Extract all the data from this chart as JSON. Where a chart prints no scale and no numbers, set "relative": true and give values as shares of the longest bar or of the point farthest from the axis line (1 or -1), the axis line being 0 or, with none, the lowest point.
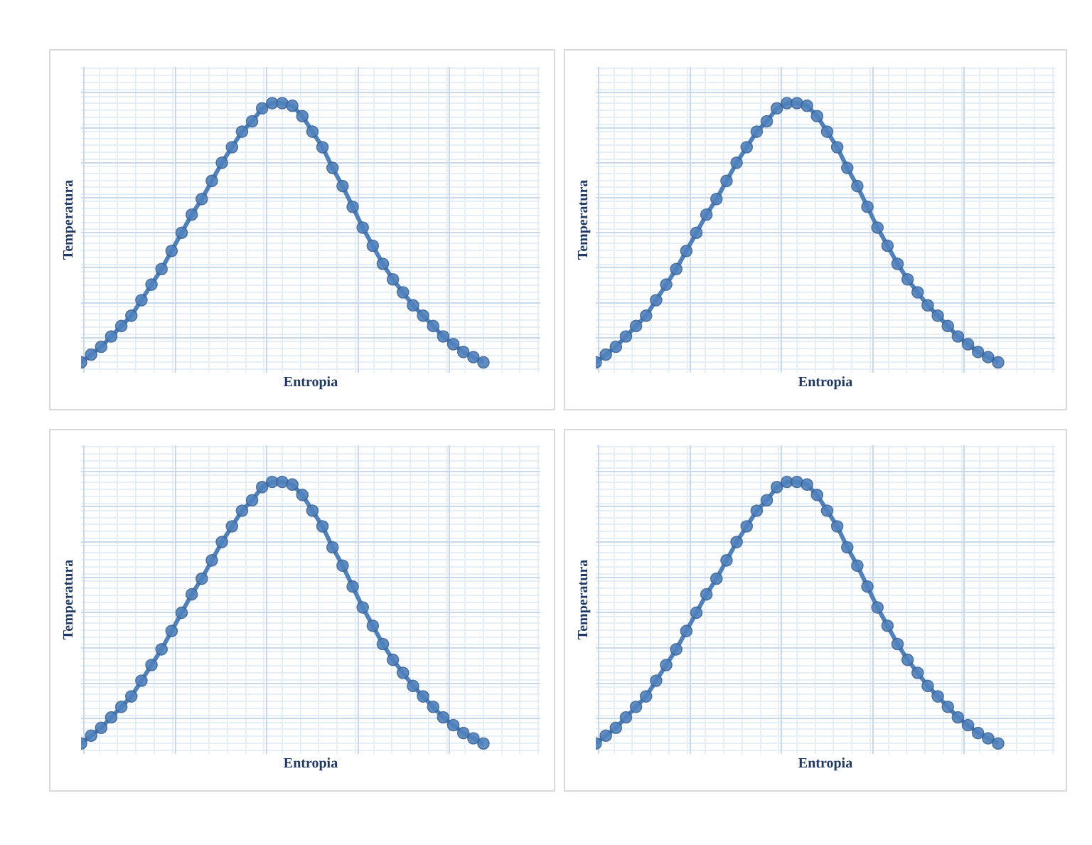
{
  "chart_data": [
    {
      "type": "line",
      "relative": true,
      "xlabel": "Entropia",
      "ylabel": "Temperatura",
      "grid": true,
      "marker": "circle",
      "tick_labels": false,
      "categories": [
        null,
        null,
        null,
        null,
        null,
        null,
        null,
        null,
        null,
        null,
        null,
        null,
        null,
        null,
        null,
        null,
        null,
        null,
        null,
        null,
        null,
        null,
        null,
        null,
        null,
        null,
        null,
        null,
        null,
        null,
        null,
        null,
        null,
        null,
        null,
        null,
        null,
        null,
        null,
        null,
        null
      ],
      "series": [
        {
          "color": "#4f81bd",
          "values": [
            0,
            0.03,
            0.06,
            0.1,
            0.14,
            0.18,
            0.24,
            0.3,
            0.36,
            0.43,
            0.5,
            0.57,
            0.63,
            0.7,
            0.77,
            0.83,
            0.89,
            0.93,
            0.98,
            1.0,
            1.0,
            0.99,
            0.95,
            0.89,
            0.83,
            0.75,
            0.68,
            0.6,
            0.52,
            0.45,
            0.38,
            0.32,
            0.27,
            0.22,
            0.18,
            0.14,
            0.1,
            0.07,
            0.04,
            0.02,
            0
          ]
        }
      ]
    },
    {
      "type": "line",
      "relative": true,
      "xlabel": "Entropia",
      "ylabel": "Temperatura",
      "grid": true,
      "marker": "circle",
      "tick_labels": false,
      "categories": [
        null,
        null,
        null,
        null,
        null,
        null,
        null,
        null,
        null,
        null,
        null,
        null,
        null,
        null,
        null,
        null,
        null,
        null,
        null,
        null,
        null,
        null,
        null,
        null,
        null,
        null,
        null,
        null,
        null,
        null,
        null,
        null,
        null,
        null,
        null,
        null,
        null,
        null,
        null,
        null,
        null
      ],
      "series": [
        {
          "color": "#4f81bd",
          "values": [
            0,
            0.03,
            0.06,
            0.1,
            0.14,
            0.18,
            0.24,
            0.3,
            0.36,
            0.43,
            0.5,
            0.57,
            0.63,
            0.7,
            0.77,
            0.83,
            0.89,
            0.93,
            0.98,
            1.0,
            1.0,
            0.99,
            0.95,
            0.89,
            0.83,
            0.75,
            0.68,
            0.6,
            0.52,
            0.45,
            0.38,
            0.32,
            0.27,
            0.22,
            0.18,
            0.14,
            0.1,
            0.07,
            0.04,
            0.02,
            0
          ]
        }
      ]
    },
    {
      "type": "line",
      "relative": true,
      "xlabel": "Entropia",
      "ylabel": "Temperatura",
      "grid": true,
      "marker": "circle",
      "tick_labels": false,
      "categories": [
        null,
        null,
        null,
        null,
        null,
        null,
        null,
        null,
        null,
        null,
        null,
        null,
        null,
        null,
        null,
        null,
        null,
        null,
        null,
        null,
        null,
        null,
        null,
        null,
        null,
        null,
        null,
        null,
        null,
        null,
        null,
        null,
        null,
        null,
        null,
        null,
        null,
        null,
        null,
        null,
        null
      ],
      "series": [
        {
          "color": "#4f81bd",
          "values": [
            0,
            0.03,
            0.06,
            0.1,
            0.14,
            0.18,
            0.24,
            0.3,
            0.36,
            0.43,
            0.5,
            0.57,
            0.63,
            0.7,
            0.77,
            0.83,
            0.89,
            0.93,
            0.98,
            1.0,
            1.0,
            0.99,
            0.95,
            0.89,
            0.83,
            0.75,
            0.68,
            0.6,
            0.52,
            0.45,
            0.38,
            0.32,
            0.27,
            0.22,
            0.18,
            0.14,
            0.1,
            0.07,
            0.04,
            0.02,
            0
          ]
        }
      ]
    },
    {
      "type": "line",
      "relative": true,
      "xlabel": "Entropia",
      "ylabel": "Temperatura",
      "grid": true,
      "marker": "circle",
      "tick_labels": false,
      "categories": [
        null,
        null,
        null,
        null,
        null,
        null,
        null,
        null,
        null,
        null,
        null,
        null,
        null,
        null,
        null,
        null,
        null,
        null,
        null,
        null,
        null,
        null,
        null,
        null,
        null,
        null,
        null,
        null,
        null,
        null,
        null,
        null,
        null,
        null,
        null,
        null,
        null,
        null,
        null,
        null,
        null
      ],
      "series": [
        {
          "color": "#4f81bd",
          "values": [
            0,
            0.03,
            0.06,
            0.1,
            0.14,
            0.18,
            0.24,
            0.3,
            0.36,
            0.43,
            0.5,
            0.57,
            0.63,
            0.7,
            0.77,
            0.83,
            0.89,
            0.93,
            0.98,
            1.0,
            1.0,
            0.99,
            0.95,
            0.89,
            0.83,
            0.75,
            0.68,
            0.6,
            0.52,
            0.45,
            0.38,
            0.32,
            0.27,
            0.22,
            0.18,
            0.14,
            0.1,
            0.07,
            0.04,
            0.02,
            0
          ]
        }
      ]
    }
  ]
}
